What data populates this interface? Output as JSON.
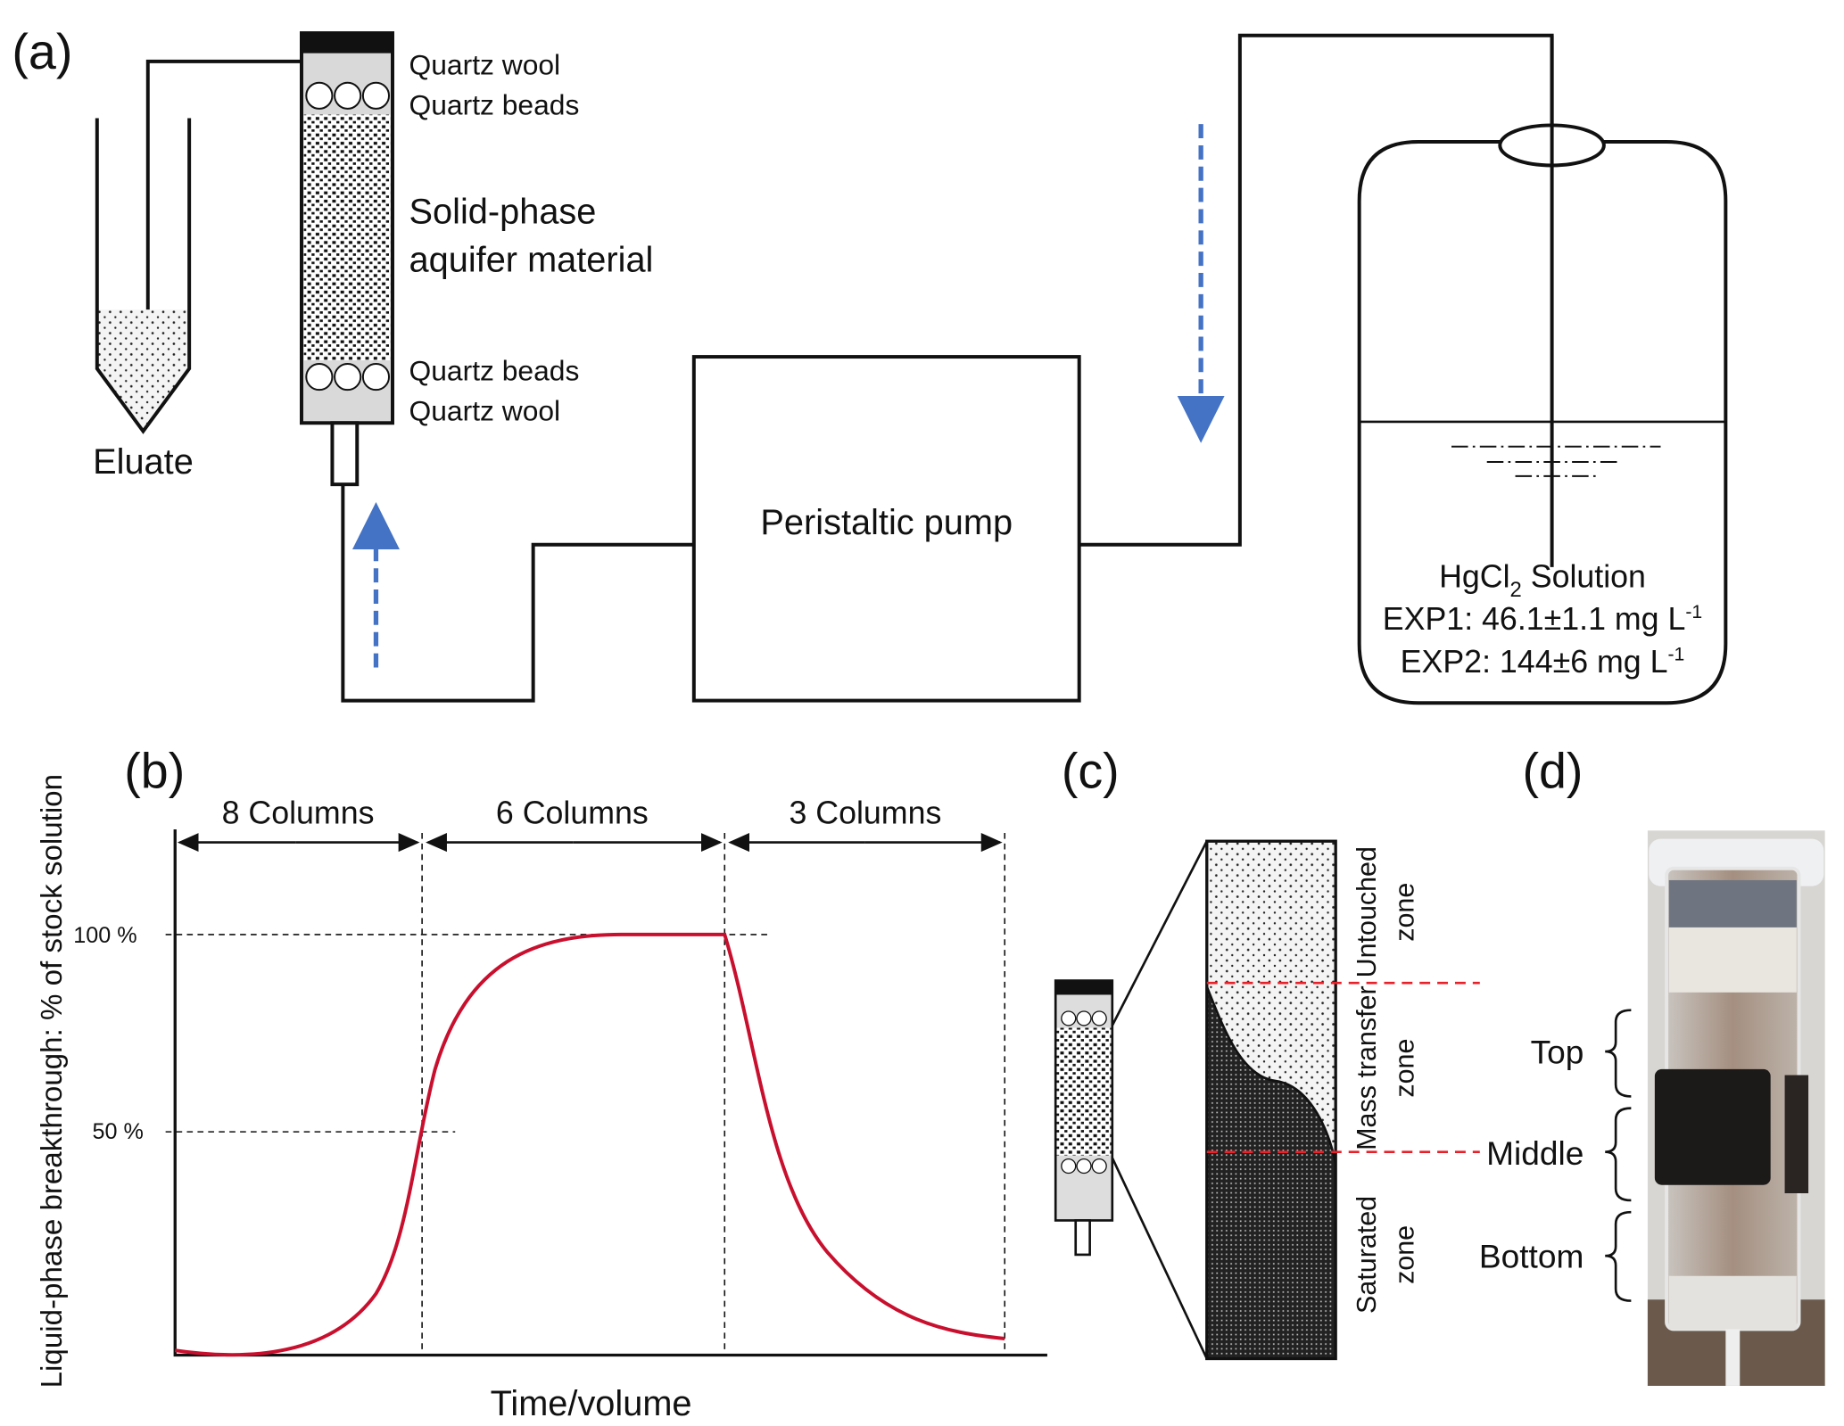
{
  "panel_a": {
    "label": "(a)",
    "eluate": "Eluate",
    "column_labels": {
      "top_wool": "Quartz wool",
      "top_beads": "Quartz beads",
      "solid_phase_line1": "Solid-phase",
      "solid_phase_line2": "aquifer material",
      "bottom_beads": "Quartz beads",
      "bottom_wool": "Quartz wool"
    },
    "pump": "Peristaltic pump",
    "solution": {
      "name_prefix": "HgCl",
      "name_sub": "2",
      "name_suffix": " Solution",
      "exp1": "EXP1: 46.1±1.1 mg L",
      "exp2": "EXP2: 144±6 mg L",
      "unit_sup": "-1"
    },
    "flow_arrow_color": "#4472c4"
  },
  "panel_b": {
    "label": "(b)",
    "ylabel": "Liquid-phase breakthrough: % of stock solution",
    "xlabel": "Time/volume",
    "ticks": [
      "100 %",
      "50 %"
    ],
    "segments": [
      "8 Columns",
      "6 Columns",
      "3 Columns"
    ],
    "curve_color": "#c8102e"
  },
  "panel_c": {
    "label": "(c)",
    "zones": [
      {
        "line1": "Untouched",
        "line2": "zone"
      },
      {
        "line1": "Mass transfer",
        "line2": "zone"
      },
      {
        "line1": "Saturated",
        "line2": "zone"
      }
    ],
    "boundary_color": "#e8202a"
  },
  "panel_d": {
    "label": "(d)",
    "sections": [
      "Top",
      "Middle",
      "Bottom"
    ]
  }
}
